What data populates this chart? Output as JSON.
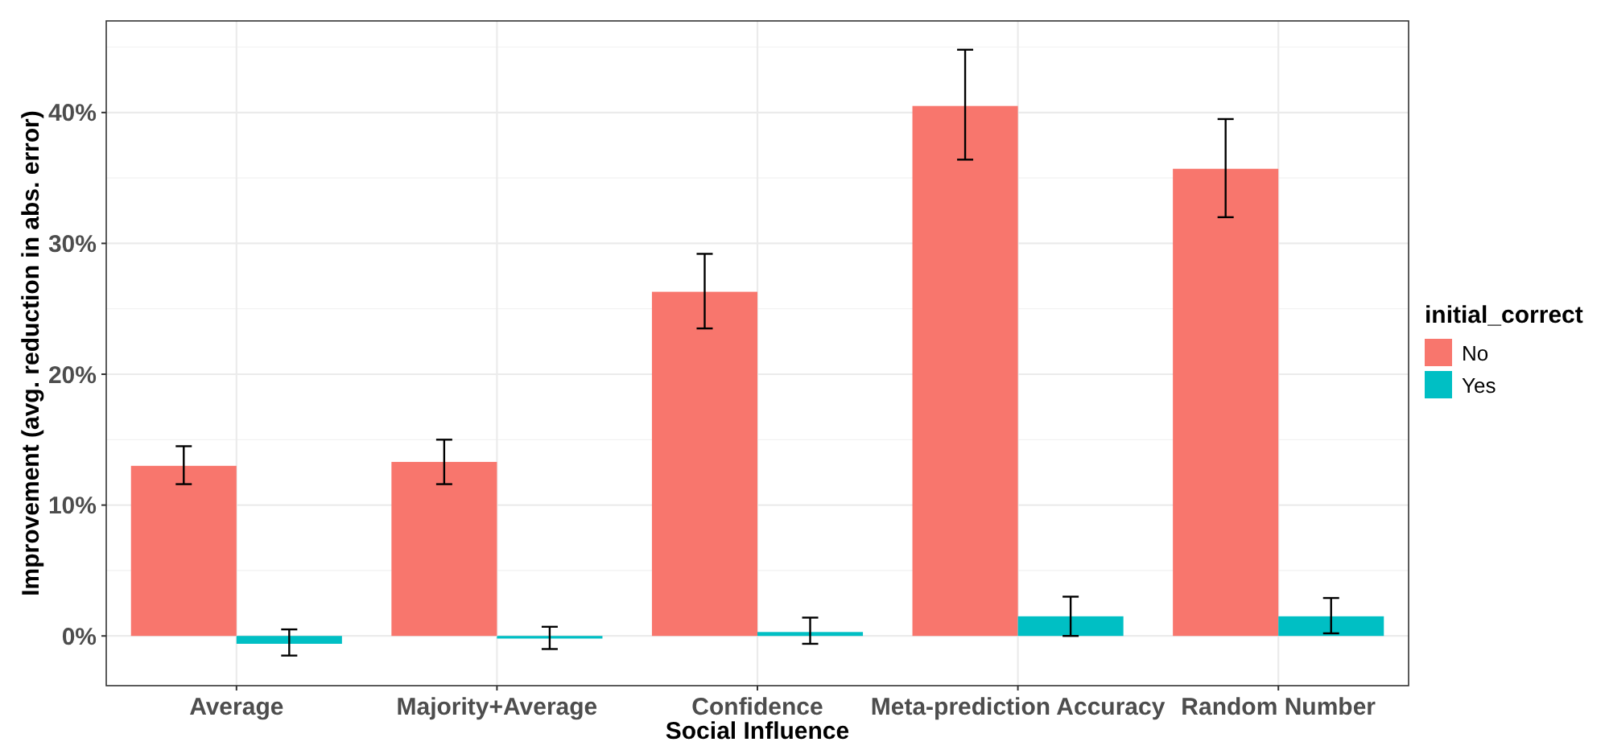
{
  "chart_data": {
    "type": "bar",
    "xlabel": "Social Influence",
    "ylabel": "Improvement (avg. reduction in abs. error)",
    "legend_title": "initial_correct",
    "categories": [
      "Average",
      "Majority+Average",
      "Confidence",
      "Meta-prediction Accuracy",
      "Random Number"
    ],
    "series": [
      {
        "name": "No",
        "color": "#f8766d",
        "values": [
          13.0,
          13.3,
          26.3,
          40.5,
          35.7
        ],
        "errors": [
          [
            11.6,
            14.5
          ],
          [
            11.6,
            15.0
          ],
          [
            23.5,
            29.2
          ],
          [
            36.4,
            44.8
          ],
          [
            32.0,
            39.5
          ]
        ]
      },
      {
        "name": "Yes",
        "color": "#00bfc4",
        "values": [
          -0.6,
          -0.2,
          0.3,
          1.5,
          1.5
        ],
        "errors": [
          [
            -1.5,
            0.5
          ],
          [
            -1.0,
            0.7
          ],
          [
            -0.6,
            1.4
          ],
          [
            0.0,
            3.0
          ],
          [
            0.2,
            2.9
          ]
        ]
      }
    ],
    "ylim": [
      -3.8,
      47
    ],
    "yticks": [
      {
        "value": 0,
        "label": "0%"
      },
      {
        "value": 10,
        "label": "10%"
      },
      {
        "value": 20,
        "label": "20%"
      },
      {
        "value": 30,
        "label": "30%"
      },
      {
        "value": 40,
        "label": "40%"
      }
    ],
    "grid": true,
    "legend": "right"
  }
}
